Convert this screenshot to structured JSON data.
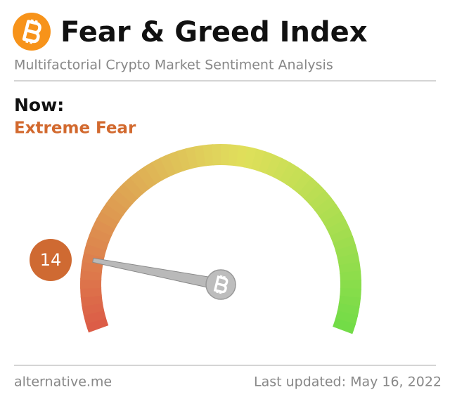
{
  "chart_data": {
    "type": "gauge",
    "title": "Fear & Greed Index",
    "subtitle": "Multifactorial Crypto Market Sentiment Analysis",
    "label": "Now:",
    "classification": "Extreme Fear",
    "value": 14,
    "ylim": [
      0,
      100
    ],
    "source": "alternative.me",
    "updated": "Last updated: May 16, 2022"
  }
}
